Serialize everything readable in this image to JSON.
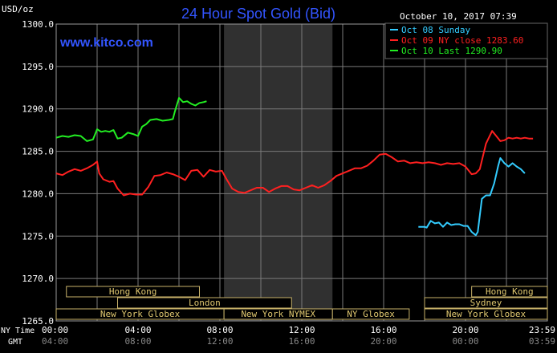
{
  "header": {
    "unit": "USD/oz",
    "title": "24 Hour Spot Gold (Bid)",
    "timestamp": "October 10, 2017 07:39",
    "brand": "www.kitco.com"
  },
  "legend": [
    {
      "label": "Oct 08 Sunday",
      "color": "#33ccff"
    },
    {
      "label": "Oct 09 NY close 1283.60",
      "color": "#ff2020"
    },
    {
      "label": "Oct 10 Last 1290.90",
      "color": "#22ee22"
    }
  ],
  "time_labels": {
    "ny_row_label": "NY Time",
    "gmt_row_label": "GMT",
    "ny": [
      "00:00",
      "04:00",
      "08:00",
      "12:00",
      "16:00",
      "20:00",
      "23:59"
    ],
    "gmt": [
      "04:00",
      "08:00",
      "12:00",
      "16:00",
      "20:00",
      "00:00",
      "03:59"
    ]
  },
  "markets": [
    {
      "label": "Hong Kong",
      "row": 0,
      "start": 0.5,
      "end": 7.0
    },
    {
      "label": "Hong Kong",
      "row": 0,
      "start": 20.3,
      "end": 24.0
    },
    {
      "label": "London",
      "row": 1,
      "start": 3.0,
      "end": 11.5
    },
    {
      "label": "Sydney",
      "row": 1,
      "start": 18.0,
      "end": 24.0
    },
    {
      "label": "New York Globex",
      "row": 2,
      "start": 0.0,
      "end": 8.2
    },
    {
      "label": "New York NYMEX",
      "row": 2,
      "start": 8.2,
      "end": 13.5
    },
    {
      "label": "NY Globex",
      "row": 2,
      "start": 13.5,
      "end": 17.25
    },
    {
      "label": "New York Globex",
      "row": 2,
      "start": 18.0,
      "end": 24.0
    }
  ],
  "chart_data": {
    "type": "line",
    "title": "24 Hour Spot Gold (Bid)",
    "ylabel": "USD/oz",
    "xlabel": "NY Time",
    "xlim": [
      0,
      24
    ],
    "ylim": [
      1265,
      1300
    ],
    "yticks": [
      "1300.0",
      "1295.0",
      "1290.0",
      "1285.0",
      "1280.0",
      "1275.0",
      "1270.0",
      "1265.0"
    ],
    "grid": true,
    "legend_position": "top-right",
    "shaded_region": [
      8.2,
      13.5
    ],
    "series": [
      {
        "name": "Oct 08 Sunday",
        "color": "#33ccff",
        "points": [
          [
            17.7,
            1276.1
          ],
          [
            18.0,
            1276.1
          ],
          [
            18.1,
            1276.0
          ],
          [
            18.3,
            1276.8
          ],
          [
            18.5,
            1276.5
          ],
          [
            18.7,
            1276.6
          ],
          [
            18.9,
            1276.1
          ],
          [
            19.1,
            1276.6
          ],
          [
            19.3,
            1276.3
          ],
          [
            19.5,
            1276.4
          ],
          [
            19.7,
            1276.4
          ],
          [
            19.9,
            1276.2
          ],
          [
            20.1,
            1276.2
          ],
          [
            20.3,
            1275.5
          ],
          [
            20.5,
            1275.1
          ],
          [
            20.6,
            1275.5
          ],
          [
            20.8,
            1279.4
          ],
          [
            21.0,
            1279.8
          ],
          [
            21.2,
            1279.8
          ],
          [
            21.4,
            1281.2
          ],
          [
            21.6,
            1283.3
          ],
          [
            21.7,
            1284.2
          ],
          [
            21.9,
            1283.6
          ],
          [
            22.1,
            1283.2
          ],
          [
            22.3,
            1283.6
          ],
          [
            22.5,
            1283.2
          ],
          [
            22.7,
            1282.9
          ],
          [
            22.9,
            1282.4
          ]
        ]
      },
      {
        "name": "Oct 09 NY close 1283.60",
        "color": "#ff2020",
        "points": [
          [
            0.0,
            1282.4
          ],
          [
            0.3,
            1282.2
          ],
          [
            0.6,
            1282.6
          ],
          [
            0.9,
            1282.9
          ],
          [
            1.2,
            1282.7
          ],
          [
            1.5,
            1283.0
          ],
          [
            1.8,
            1283.4
          ],
          [
            2.0,
            1283.8
          ],
          [
            2.1,
            1282.4
          ],
          [
            2.3,
            1281.7
          ],
          [
            2.6,
            1281.4
          ],
          [
            2.8,
            1281.5
          ],
          [
            3.0,
            1280.6
          ],
          [
            3.3,
            1279.8
          ],
          [
            3.6,
            1280.0
          ],
          [
            3.9,
            1279.9
          ],
          [
            4.2,
            1279.9
          ],
          [
            4.5,
            1280.8
          ],
          [
            4.8,
            1282.1
          ],
          [
            5.1,
            1282.2
          ],
          [
            5.4,
            1282.5
          ],
          [
            5.7,
            1282.3
          ],
          [
            6.0,
            1282.0
          ],
          [
            6.3,
            1281.6
          ],
          [
            6.6,
            1282.7
          ],
          [
            6.9,
            1282.8
          ],
          [
            7.2,
            1282.0
          ],
          [
            7.5,
            1282.8
          ],
          [
            7.8,
            1282.6
          ],
          [
            8.1,
            1282.7
          ],
          [
            8.3,
            1281.8
          ],
          [
            8.6,
            1280.6
          ],
          [
            8.9,
            1280.2
          ],
          [
            9.2,
            1280.1
          ],
          [
            9.5,
            1280.4
          ],
          [
            9.8,
            1280.7
          ],
          [
            10.1,
            1280.7
          ],
          [
            10.4,
            1280.2
          ],
          [
            10.7,
            1280.6
          ],
          [
            11.0,
            1280.9
          ],
          [
            11.3,
            1280.9
          ],
          [
            11.6,
            1280.5
          ],
          [
            11.9,
            1280.4
          ],
          [
            12.2,
            1280.7
          ],
          [
            12.5,
            1281.0
          ],
          [
            12.8,
            1280.7
          ],
          [
            13.1,
            1281.0
          ],
          [
            13.4,
            1281.5
          ],
          [
            13.7,
            1282.1
          ],
          [
            14.0,
            1282.4
          ],
          [
            14.3,
            1282.7
          ],
          [
            14.6,
            1283.0
          ],
          [
            14.9,
            1283.0
          ],
          [
            15.2,
            1283.3
          ],
          [
            15.5,
            1283.9
          ],
          [
            15.8,
            1284.6
          ],
          [
            16.1,
            1284.7
          ],
          [
            16.4,
            1284.3
          ],
          [
            16.7,
            1283.8
          ],
          [
            17.0,
            1283.9
          ],
          [
            17.3,
            1283.6
          ],
          [
            17.6,
            1283.7
          ],
          [
            17.9,
            1283.6
          ],
          [
            18.2,
            1283.7
          ],
          [
            18.5,
            1283.6
          ],
          [
            18.8,
            1283.4
          ],
          [
            19.1,
            1283.6
          ],
          [
            19.4,
            1283.5
          ],
          [
            19.7,
            1283.6
          ],
          [
            20.0,
            1283.2
          ],
          [
            20.3,
            1282.3
          ],
          [
            20.5,
            1282.4
          ],
          [
            20.7,
            1282.9
          ],
          [
            21.0,
            1285.9
          ],
          [
            21.3,
            1287.4
          ],
          [
            21.5,
            1286.8
          ],
          [
            21.7,
            1286.2
          ],
          [
            21.9,
            1286.3
          ],
          [
            22.1,
            1286.6
          ],
          [
            22.3,
            1286.5
          ],
          [
            22.5,
            1286.6
          ],
          [
            22.7,
            1286.5
          ],
          [
            22.9,
            1286.6
          ],
          [
            23.1,
            1286.5
          ],
          [
            23.3,
            1286.5
          ]
        ]
      },
      {
        "name": "Oct 10 Last 1290.90",
        "color": "#22ee22",
        "points": [
          [
            0.0,
            1286.6
          ],
          [
            0.3,
            1286.8
          ],
          [
            0.6,
            1286.7
          ],
          [
            0.9,
            1286.9
          ],
          [
            1.2,
            1286.8
          ],
          [
            1.5,
            1286.2
          ],
          [
            1.8,
            1286.4
          ],
          [
            2.0,
            1287.6
          ],
          [
            2.2,
            1287.3
          ],
          [
            2.4,
            1287.4
          ],
          [
            2.6,
            1287.3
          ],
          [
            2.8,
            1287.5
          ],
          [
            3.0,
            1286.5
          ],
          [
            3.2,
            1286.6
          ],
          [
            3.5,
            1287.2
          ],
          [
            3.8,
            1287.0
          ],
          [
            4.0,
            1286.8
          ],
          [
            4.2,
            1287.9
          ],
          [
            4.4,
            1288.2
          ],
          [
            4.6,
            1288.7
          ],
          [
            4.9,
            1288.8
          ],
          [
            5.2,
            1288.6
          ],
          [
            5.5,
            1288.7
          ],
          [
            5.7,
            1288.8
          ],
          [
            5.8,
            1289.7
          ],
          [
            6.0,
            1291.3
          ],
          [
            6.2,
            1290.8
          ],
          [
            6.4,
            1290.9
          ],
          [
            6.6,
            1290.6
          ],
          [
            6.8,
            1290.4
          ],
          [
            7.0,
            1290.7
          ],
          [
            7.2,
            1290.8
          ],
          [
            7.35,
            1290.9
          ]
        ]
      }
    ]
  }
}
